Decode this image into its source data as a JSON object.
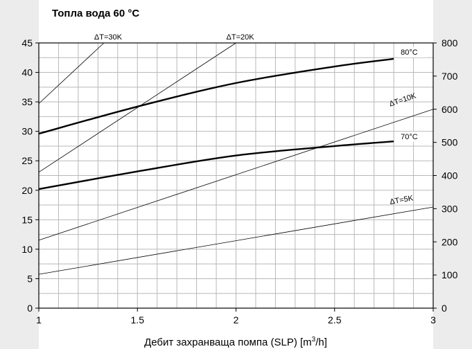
{
  "chart_data": {
    "type": "line",
    "title": "Топла вода 60 °C",
    "xlabel": "Дебит захранваща помпа (SLP) [m³/h]",
    "xlabel_main": "Дебит захранваща помпа (SLP) [m",
    "xlabel_sup": "3",
    "xlabel_tail": "/h]",
    "xlim": [
      1,
      3
    ],
    "ylim_left": [
      0,
      45
    ],
    "ylim_right": [
      0,
      800
    ],
    "x_ticks": [
      "1",
      "1.5",
      "2",
      "2.5",
      "3"
    ],
    "y_left_ticks": [
      "0",
      "5",
      "10",
      "15",
      "20",
      "25",
      "30",
      "35",
      "40",
      "45"
    ],
    "y_right_ticks": [
      "0",
      "100",
      "200",
      "300",
      "400",
      "500",
      "600",
      "700",
      "800"
    ],
    "grid": true,
    "colors": {
      "curve": "#000000",
      "grid": "#b8b8b8",
      "frame": "#000000",
      "side_panel": "#ececec"
    },
    "series": [
      {
        "name": "80°C",
        "axis": "left",
        "x": [
          1.0,
          1.5,
          2.0,
          2.5,
          2.8
        ],
        "y": [
          29.6,
          34.2,
          38.2,
          41.0,
          42.3
        ]
      },
      {
        "name": "70°C",
        "axis": "left",
        "x": [
          1.0,
          1.5,
          2.0,
          2.5,
          2.8
        ],
        "y": [
          20.2,
          23.2,
          25.9,
          27.5,
          28.3
        ]
      }
    ],
    "reference_lines": [
      {
        "name": "ΔT=30K",
        "axis": "right",
        "x": [
          1.0,
          1.33
        ],
        "y": [
          617,
          800
        ]
      },
      {
        "name": "ΔT=20K",
        "axis": "right",
        "x": [
          1.0,
          2.0
        ],
        "y": [
          410,
          800
        ]
      },
      {
        "name": "ΔT=10K",
        "axis": "right",
        "x": [
          1.0,
          3.0
        ],
        "y": [
          205,
          600
        ]
      },
      {
        "name": "ΔT=5K",
        "axis": "right",
        "x": [
          1.0,
          3.0
        ],
        "y": [
          102,
          305
        ]
      }
    ]
  }
}
